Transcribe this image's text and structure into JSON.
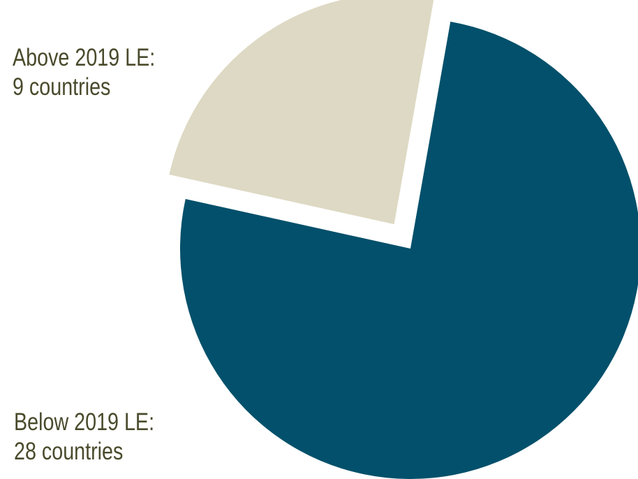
{
  "chart_data": {
    "type": "pie",
    "slices": [
      {
        "label_line1": "Below 2019 LE:",
        "label_line2": "28 countries",
        "value": 28,
        "color": "#02506b"
      },
      {
        "label_line1": "Above 2019 LE:",
        "label_line2": "9 countries",
        "value": 9,
        "color": "#ddd9c4"
      }
    ],
    "label_color": "#4a4a2c"
  }
}
